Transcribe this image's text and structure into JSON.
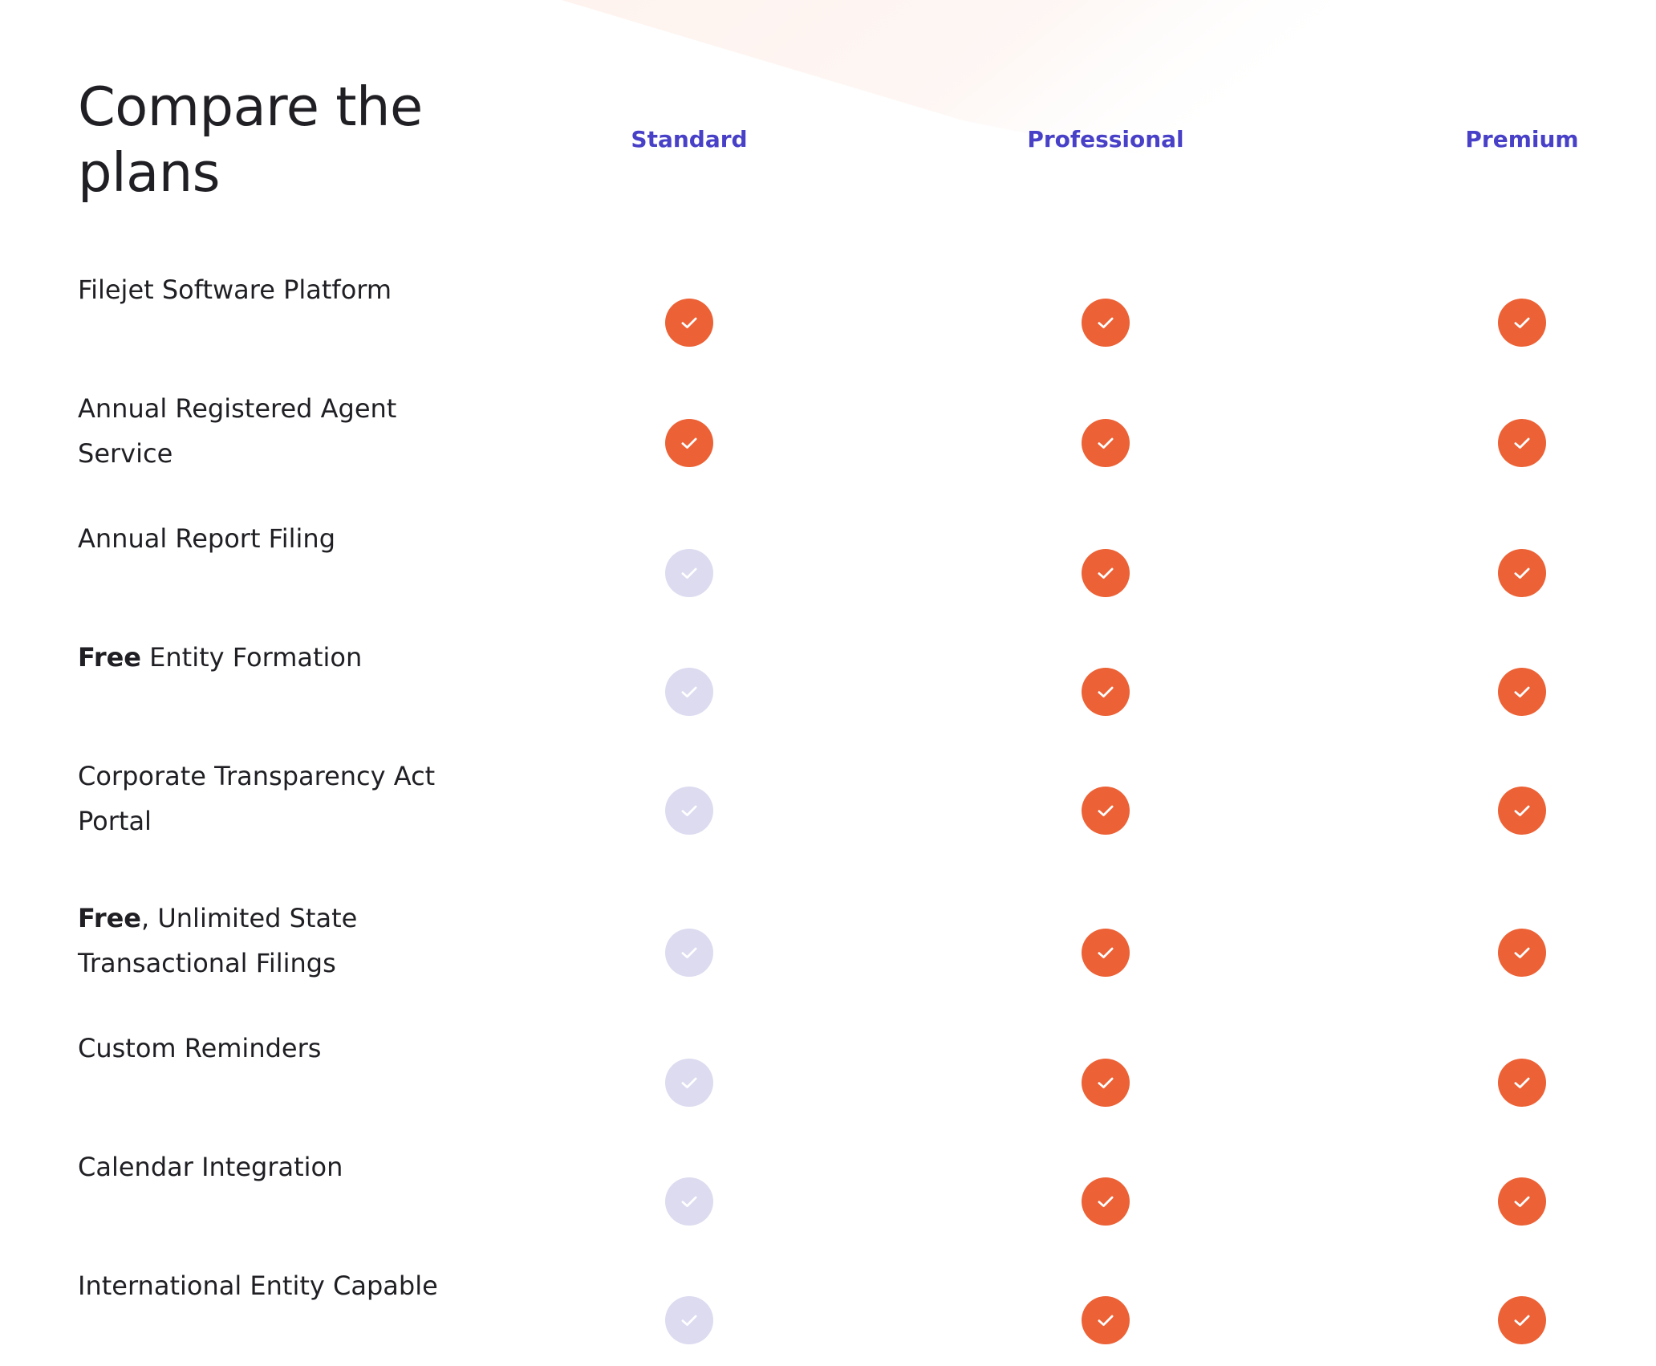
{
  "page": {
    "title": "Compare the plans",
    "colors": {
      "accent_heading": "#4841c8",
      "check_included": "#ec6135",
      "check_excluded": "#dcdbf0",
      "text": "#1f1f24",
      "background": "#ffffff"
    }
  },
  "plans": [
    "Standard",
    "Professional",
    "Premium"
  ],
  "features": [
    {
      "label_bold": "",
      "label": "Filejet Software Platform",
      "included": [
        true,
        true,
        true
      ]
    },
    {
      "label_bold": "",
      "label": "Annual Registered Agent Service",
      "included": [
        true,
        true,
        true
      ]
    },
    {
      "label_bold": "",
      "label": "Annual Report Filing",
      "included": [
        false,
        true,
        true
      ]
    },
    {
      "label_bold": "Free",
      "label": " Entity Formation",
      "included": [
        false,
        true,
        true
      ]
    },
    {
      "label_bold": "",
      "label": "Corporate Transparency Act Portal",
      "included": [
        false,
        true,
        true
      ]
    },
    {
      "label_bold": "Free",
      "label": ", Unlimited State Transactional Filings",
      "included": [
        false,
        true,
        true
      ]
    },
    {
      "label_bold": "",
      "label": "Custom Reminders",
      "included": [
        false,
        true,
        true
      ]
    },
    {
      "label_bold": "",
      "label": "Calendar Integration",
      "included": [
        false,
        true,
        true
      ]
    },
    {
      "label_bold": "",
      "label": "International Entity Capable",
      "included": [
        false,
        true,
        true
      ]
    }
  ],
  "icons": {
    "included": "check-circle-icon",
    "excluded": "check-circle-disabled-icon"
  }
}
